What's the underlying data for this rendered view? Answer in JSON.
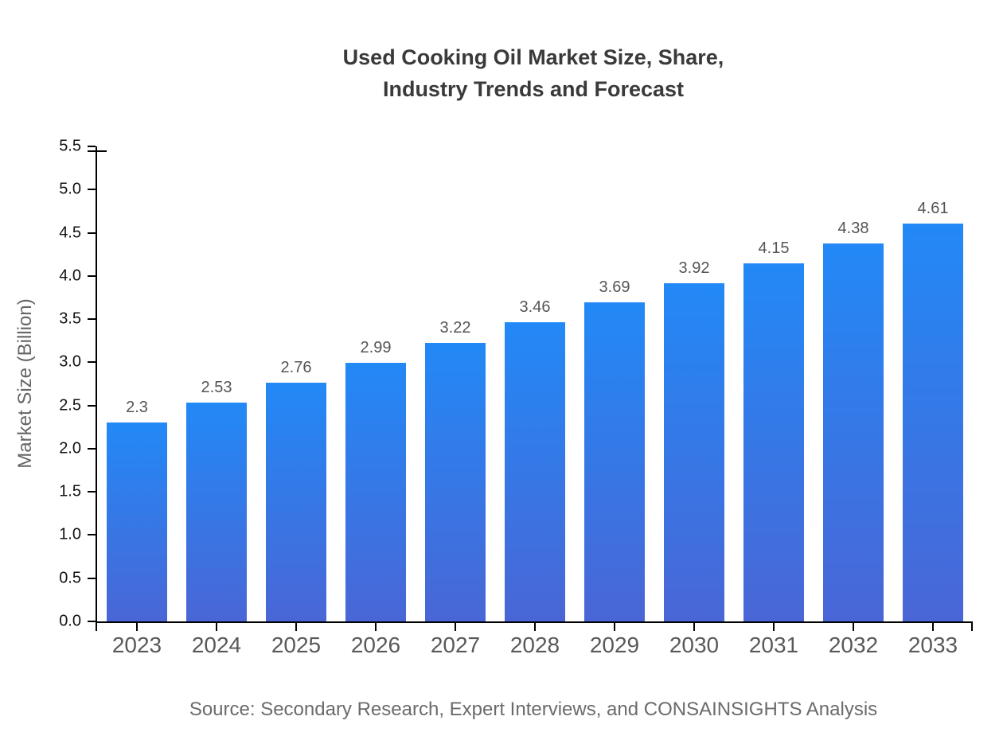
{
  "chart_data": {
    "type": "bar",
    "title": "Used Cooking Oil Market Size, Share, Industry Trends and Forecast",
    "title_lines": [
      "Used Cooking Oil Market Size, Share,",
      "Industry Trends and Forecast"
    ],
    "categories": [
      "2023",
      "2024",
      "2025",
      "2026",
      "2027",
      "2028",
      "2029",
      "2030",
      "2031",
      "2032",
      "2033"
    ],
    "values": [
      2.3,
      2.53,
      2.76,
      2.99,
      3.22,
      3.46,
      3.69,
      3.92,
      4.15,
      4.38,
      4.61
    ],
    "value_labels": [
      "2.3",
      "2.53",
      "2.76",
      "2.99",
      "3.22",
      "3.46",
      "3.69",
      "3.92",
      "4.15",
      "4.38",
      "4.61"
    ],
    "xlabel": "",
    "ylabel": "Market Size (Billion)",
    "ylim": [
      0,
      5.5
    ],
    "ytick_step": 0.5,
    "ytick_labels": [
      "0.0",
      "0.5",
      "1.0",
      "1.5",
      "2.0",
      "2.5",
      "3.0",
      "3.5",
      "4.0",
      "4.5",
      "5.0",
      "5.5"
    ],
    "grid": false,
    "legend": "none",
    "colors": {
      "bar_gradient_top": "#2289f6",
      "bar_gradient_bottom": "#4a66d6",
      "axis": "#000000",
      "title_text": "#3a3a3a",
      "value_label_text": "#555555",
      "xtick_label_text": "#595959",
      "ytick_label_text": "#111111",
      "ylabel_text": "#666666",
      "source_text": "#6b6b6b"
    }
  },
  "footer": {
    "source": "Source: Secondary Research, Expert Interviews, and CONSAINSIGHTS Analysis"
  }
}
